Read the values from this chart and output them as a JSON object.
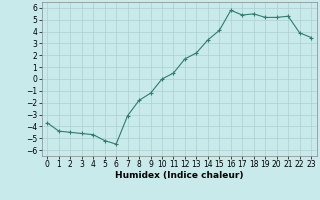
{
  "x": [
    0,
    1,
    2,
    3,
    4,
    5,
    6,
    7,
    8,
    9,
    10,
    11,
    12,
    13,
    14,
    15,
    16,
    17,
    18,
    19,
    20,
    21,
    22,
    23
  ],
  "y": [
    -3.7,
    -4.4,
    -4.5,
    -4.6,
    -4.7,
    -5.2,
    -5.5,
    -3.1,
    -1.8,
    -1.2,
    0.0,
    0.5,
    1.7,
    2.2,
    3.3,
    4.1,
    5.8,
    5.4,
    5.5,
    5.2,
    5.2,
    5.3,
    3.9,
    3.5
  ],
  "line_color": "#2e7d6e",
  "marker": "+",
  "marker_color": "#2e7d6e",
  "bg_color": "#c8eaea",
  "grid_color": "#aed0d0",
  "xlabel": "Humidex (Indice chaleur)",
  "xlim": [
    -0.5,
    23.5
  ],
  "ylim": [
    -6.5,
    6.5
  ],
  "yticks": [
    -6,
    -5,
    -4,
    -3,
    -2,
    -1,
    0,
    1,
    2,
    3,
    4,
    5,
    6
  ],
  "xticks": [
    0,
    1,
    2,
    3,
    4,
    5,
    6,
    7,
    8,
    9,
    10,
    11,
    12,
    13,
    14,
    15,
    16,
    17,
    18,
    19,
    20,
    21,
    22,
    23
  ],
  "tick_fontsize": 5.5,
  "label_fontsize": 6.5
}
